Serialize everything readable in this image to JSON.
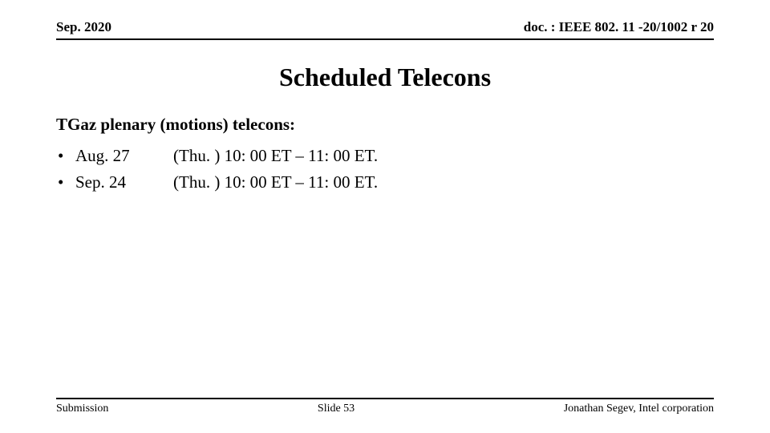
{
  "header": {
    "left": "Sep. 2020",
    "right": "doc. : IEEE 802. 11 -20/1002 r 20"
  },
  "title": "Scheduled Telecons",
  "section_heading": "TGaz plenary (motions) telecons:",
  "bullets": [
    {
      "date": "Aug. 27",
      "time": "(Thu. ) 10: 00 ET – 11: 00 ET."
    },
    {
      "date": "Sep. 24",
      "time": "(Thu. ) 10: 00 ET – 11: 00 ET."
    }
  ],
  "footer": {
    "left": "Submission",
    "center": "Slide 53",
    "right": "Jonathan Segev, Intel corporation"
  }
}
